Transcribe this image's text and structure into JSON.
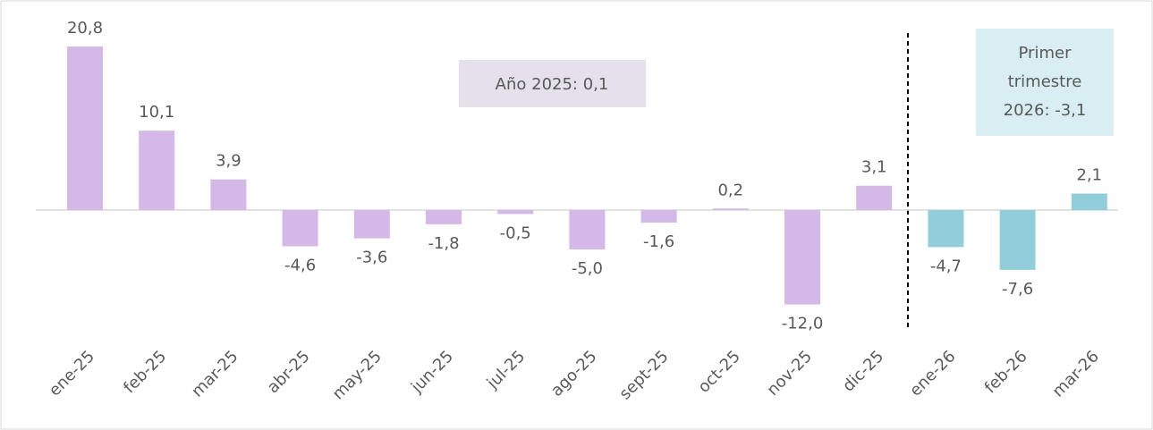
{
  "chart_data": {
    "type": "bar",
    "categories": [
      "ene-25",
      "feb-25",
      "mar-25",
      "abr-25",
      "may-25",
      "jun-25",
      "jul-25",
      "ago-25",
      "sept-25",
      "oct-25",
      "nov-25",
      "dic-25",
      "ene-26",
      "feb-26",
      "mar-26"
    ],
    "values": [
      20.8,
      10.1,
      3.9,
      -4.6,
      -3.6,
      -1.8,
      -0.5,
      -5.0,
      -1.6,
      0.2,
      -12.0,
      3.1,
      -4.7,
      -7.6,
      2.1
    ],
    "value_labels": [
      "20,8",
      "10,1",
      "3,9",
      "-4,6",
      "-3,6",
      "-1,8",
      "-0,5",
      "-5,0",
      "-1,6",
      "0,2",
      "-12,0",
      "3,1",
      "-4,7",
      "-7,6",
      "2,1"
    ],
    "colors": [
      "#d4b8e8",
      "#d4b8e8",
      "#d4b8e8",
      "#d4b8e8",
      "#d4b8e8",
      "#d4b8e8",
      "#d4b8e8",
      "#d4b8e8",
      "#d4b8e8",
      "#d4b8e8",
      "#d4b8e8",
      "#d4b8e8",
      "#92cddc",
      "#92cddc",
      "#92cddc"
    ],
    "annotations": [
      {
        "lines": [
          "Año 2025: 0,1"
        ]
      },
      {
        "lines": [
          "Primer",
          "trimestre",
          "2026: -3,1"
        ]
      }
    ]
  }
}
